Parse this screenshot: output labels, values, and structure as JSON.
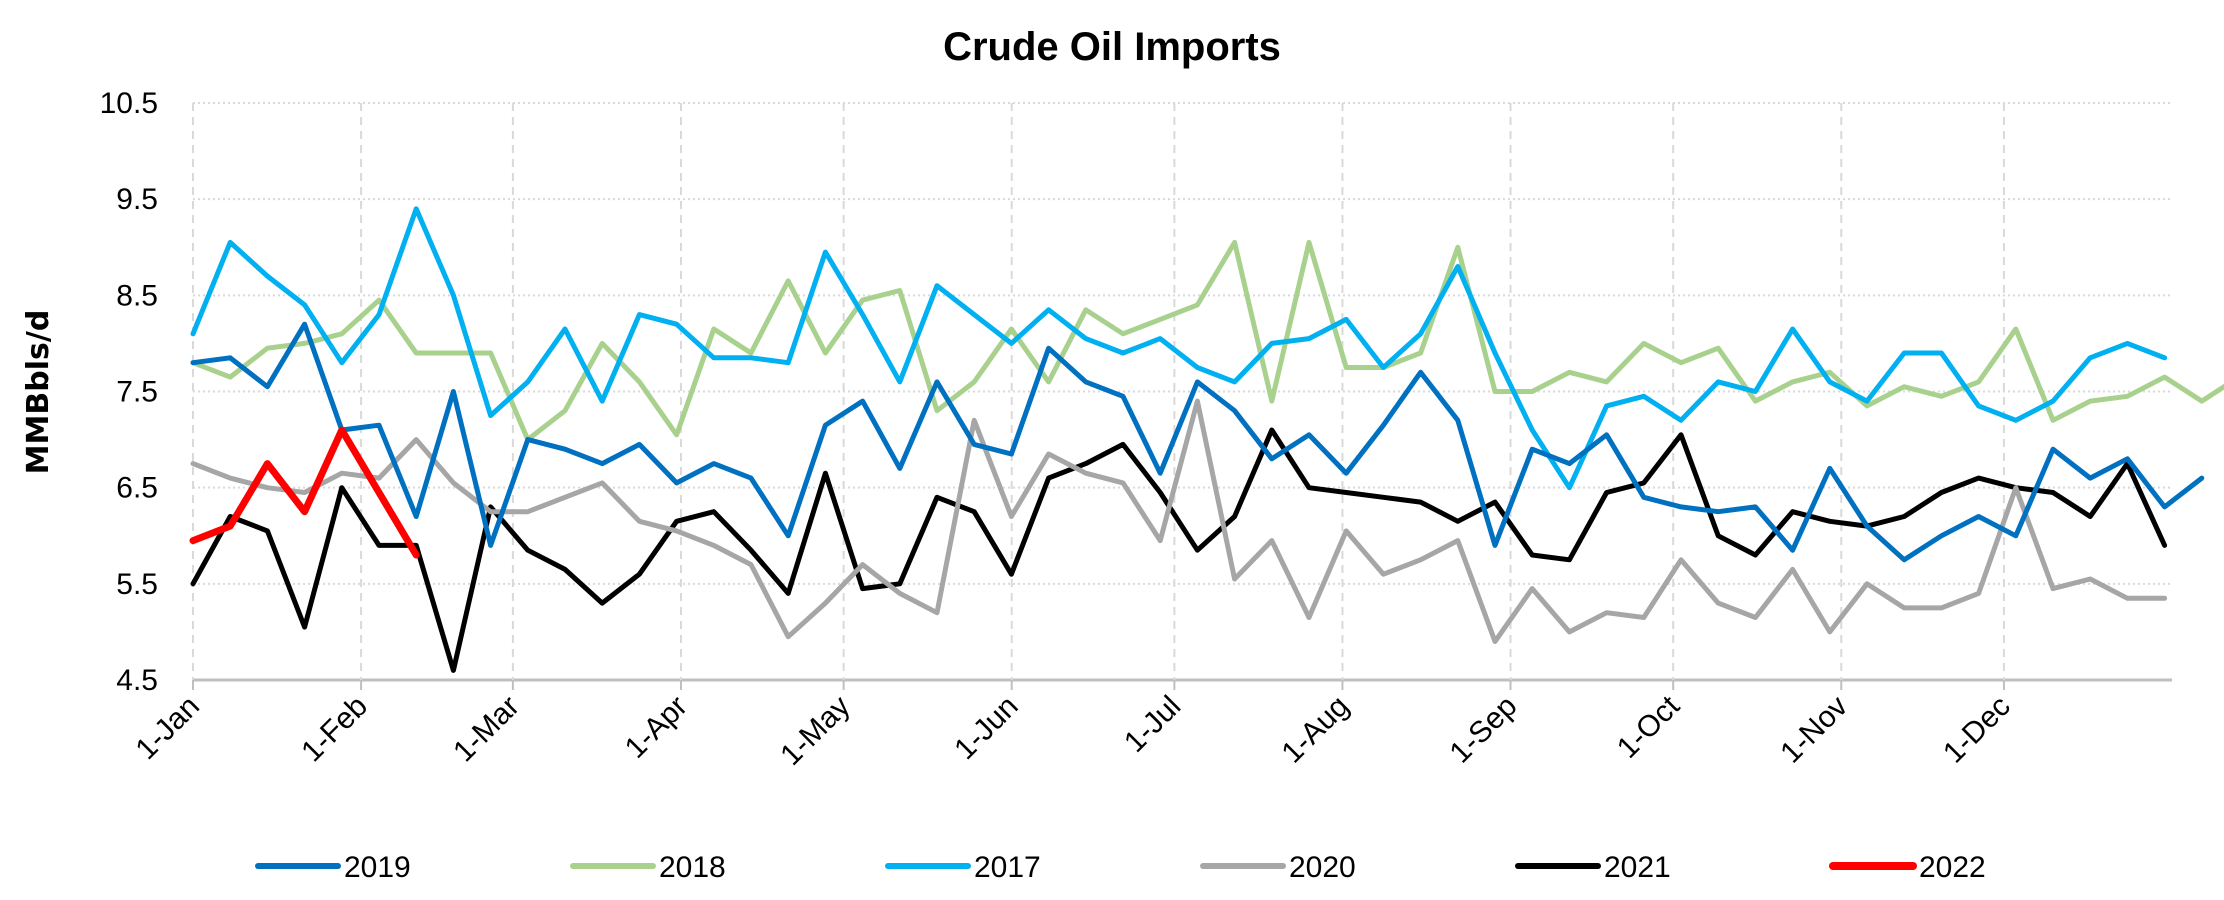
{
  "chart_data": {
    "type": "line",
    "title": "Crude Oil Imports",
    "xlabel": "",
    "ylabel": "MMBbls/d",
    "ylim": [
      4.5,
      10.5
    ],
    "yticks": [
      "4.5",
      "5.5",
      "6.5",
      "7.5",
      "8.5",
      "9.5",
      "10.5"
    ],
    "xticks": [
      {
        "label": "1-Jan",
        "day": 0
      },
      {
        "label": "1-Feb",
        "day": 31
      },
      {
        "label": "1-Mar",
        "day": 59
      },
      {
        "label": "1-Apr",
        "day": 90
      },
      {
        "label": "1-May",
        "day": 120
      },
      {
        "label": "1-Jun",
        "day": 151
      },
      {
        "label": "1-Jul",
        "day": 181
      },
      {
        "label": "1-Aug",
        "day": 212
      },
      {
        "label": "1-Sep",
        "day": 243
      },
      {
        "label": "1-Oct",
        "day": 273
      },
      {
        "label": "1-Nov",
        "day": 304
      },
      {
        "label": "1-Dec",
        "day": 334
      }
    ],
    "x_interval": "weekly",
    "grid": true,
    "legend": "bottom",
    "series": [
      {
        "name": "2019",
        "color": "#0070C0",
        "values": [
          7.8,
          7.85,
          7.55,
          8.2,
          7.1,
          7.15,
          6.2,
          7.5,
          5.9,
          7.0,
          6.9,
          6.75,
          6.95,
          6.55,
          6.75,
          6.6,
          6.0,
          7.15,
          7.4,
          6.7,
          7.6,
          6.95,
          6.85,
          7.95,
          7.6,
          7.45,
          6.65,
          7.6,
          7.3,
          6.8,
          7.05,
          6.65,
          7.15,
          7.7,
          7.2,
          5.9,
          6.9,
          6.75,
          7.05,
          6.4,
          6.3,
          6.25,
          6.3,
          5.85,
          6.7,
          6.1,
          5.75,
          6.0,
          6.2,
          6.0,
          6.9,
          6.6,
          6.8,
          6.3,
          6.6
        ]
      },
      {
        "name": "2018",
        "color": "#A9D18E",
        "values": [
          7.8,
          7.65,
          7.95,
          8.0,
          8.1,
          8.45,
          7.9,
          7.9,
          7.9,
          7.0,
          7.3,
          8.0,
          7.6,
          7.05,
          8.15,
          7.9,
          8.65,
          7.9,
          8.45,
          8.55,
          7.3,
          7.6,
          8.15,
          7.6,
          8.35,
          8.1,
          8.25,
          8.4,
          9.05,
          7.4,
          9.05,
          7.75,
          7.75,
          7.9,
          9.0,
          7.5,
          7.5,
          7.7,
          7.6,
          8.0,
          7.8,
          7.95,
          7.4,
          7.6,
          7.7,
          7.35,
          7.55,
          7.45,
          7.6,
          8.15,
          7.2,
          7.4,
          7.45,
          7.65,
          7.4,
          7.65
        ]
      },
      {
        "name": "2017",
        "color": "#00B0F0",
        "values": [
          8.1,
          9.05,
          8.7,
          8.4,
          7.8,
          8.3,
          9.4,
          8.5,
          7.25,
          7.6,
          8.15,
          7.4,
          8.3,
          8.2,
          7.85,
          7.85,
          7.8,
          8.95,
          8.3,
          7.6,
          8.6,
          8.3,
          8.0,
          8.35,
          8.05,
          7.9,
          8.05,
          7.75,
          7.6,
          8.0,
          8.05,
          8.25,
          7.75,
          8.1,
          8.8,
          7.9,
          7.1,
          6.5,
          7.35,
          7.45,
          7.2,
          7.6,
          7.5,
          8.15,
          7.6,
          7.4,
          7.9,
          7.9,
          7.35,
          7.2,
          7.4,
          7.85,
          8.0,
          7.85
        ]
      },
      {
        "name": "2020",
        "color": "#A6A6A6",
        "values": [
          6.75,
          6.6,
          6.5,
          6.45,
          6.65,
          6.6,
          7.0,
          6.55,
          6.25,
          6.25,
          6.4,
          6.55,
          6.15,
          6.05,
          5.9,
          5.7,
          4.95,
          5.3,
          5.7,
          5.4,
          5.2,
          7.2,
          6.2,
          6.85,
          6.65,
          6.55,
          5.95,
          7.4,
          5.55,
          5.95,
          5.15,
          6.05,
          5.6,
          5.75,
          5.95,
          4.9,
          5.45,
          5.0,
          5.2,
          5.15,
          5.75,
          5.3,
          5.15,
          5.65,
          5.0,
          5.5,
          5.25,
          5.25,
          5.4,
          6.5,
          5.45,
          5.55,
          5.35,
          5.35
        ]
      },
      {
        "name": "2021",
        "color": "#000000",
        "values": [
          5.5,
          6.2,
          6.05,
          5.05,
          6.5,
          5.9,
          5.9,
          4.6,
          6.3,
          5.85,
          5.65,
          5.3,
          5.6,
          6.15,
          6.25,
          5.85,
          5.4,
          6.65,
          5.45,
          5.5,
          6.4,
          6.25,
          5.6,
          6.6,
          6.75,
          6.95,
          6.45,
          5.85,
          6.2,
          7.1,
          6.5,
          6.45,
          6.4,
          6.35,
          6.15,
          6.35,
          5.8,
          5.75,
          6.45,
          6.55,
          7.05,
          6.0,
          5.8,
          6.25,
          6.15,
          6.1,
          6.2,
          6.45,
          6.6,
          6.5,
          6.45,
          6.2,
          6.75,
          5.9
        ]
      },
      {
        "name": "2022",
        "color": "#FF0000",
        "values": [
          5.95,
          6.1,
          6.75,
          6.25,
          7.1,
          6.45,
          5.8
        ]
      }
    ]
  }
}
